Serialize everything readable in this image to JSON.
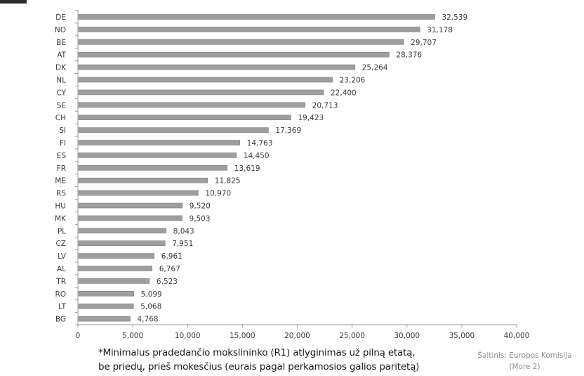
{
  "chart_data": {
    "type": "bar",
    "orientation": "horizontal",
    "categories": [
      "DE",
      "NO",
      "BE",
      "AT",
      "DK",
      "NL",
      "CY",
      "SE",
      "CH",
      "SI",
      "FI",
      "ES",
      "FR",
      "ME",
      "RS",
      "HU",
      "MK",
      "PL",
      "CZ",
      "LV",
      "AL",
      "TR",
      "RO",
      "LT",
      "BG"
    ],
    "values": [
      32539,
      31178,
      29707,
      28376,
      25264,
      23206,
      22400,
      20713,
      19423,
      17369,
      14763,
      14450,
      13619,
      11825,
      10970,
      9520,
      9503,
      8043,
      7951,
      6961,
      6767,
      6523,
      5099,
      5068,
      4768
    ],
    "value_labels": [
      "32,539",
      "31,178",
      "29,707",
      "28,376",
      "25,264",
      "23,206",
      "22,400",
      "20,713",
      "19,423",
      "17,369",
      "14,763",
      "14,450",
      "13,619",
      "11,825",
      "10,970",
      "9,520",
      "9,503",
      "8,043",
      "7,951",
      "6,961",
      "6,767",
      "6,523",
      "5,099",
      "5,068",
      "4,768"
    ],
    "xlim": [
      0,
      40000
    ],
    "x_ticks": [
      0,
      5000,
      10000,
      15000,
      20000,
      25000,
      30000,
      35000,
      40000
    ],
    "x_tick_labels": [
      "0",
      "5,000",
      "10,000",
      "15,000",
      "20,000",
      "25,000",
      "30,000",
      "35,000",
      "40,000"
    ],
    "grid": false,
    "legend": "none",
    "bar_color": "#9e9e9e"
  },
  "footnote": {
    "line1": "*Minimalus pradedančio mokslininko (R1) atlyginimas už pilną etatą,",
    "line2": "be priedų, prieš mokesčius (eurais pagal perkamosios galios paritetą)"
  },
  "source": {
    "line1": "Šaltinis: Europos Komisija",
    "line2": "(More 2)"
  }
}
